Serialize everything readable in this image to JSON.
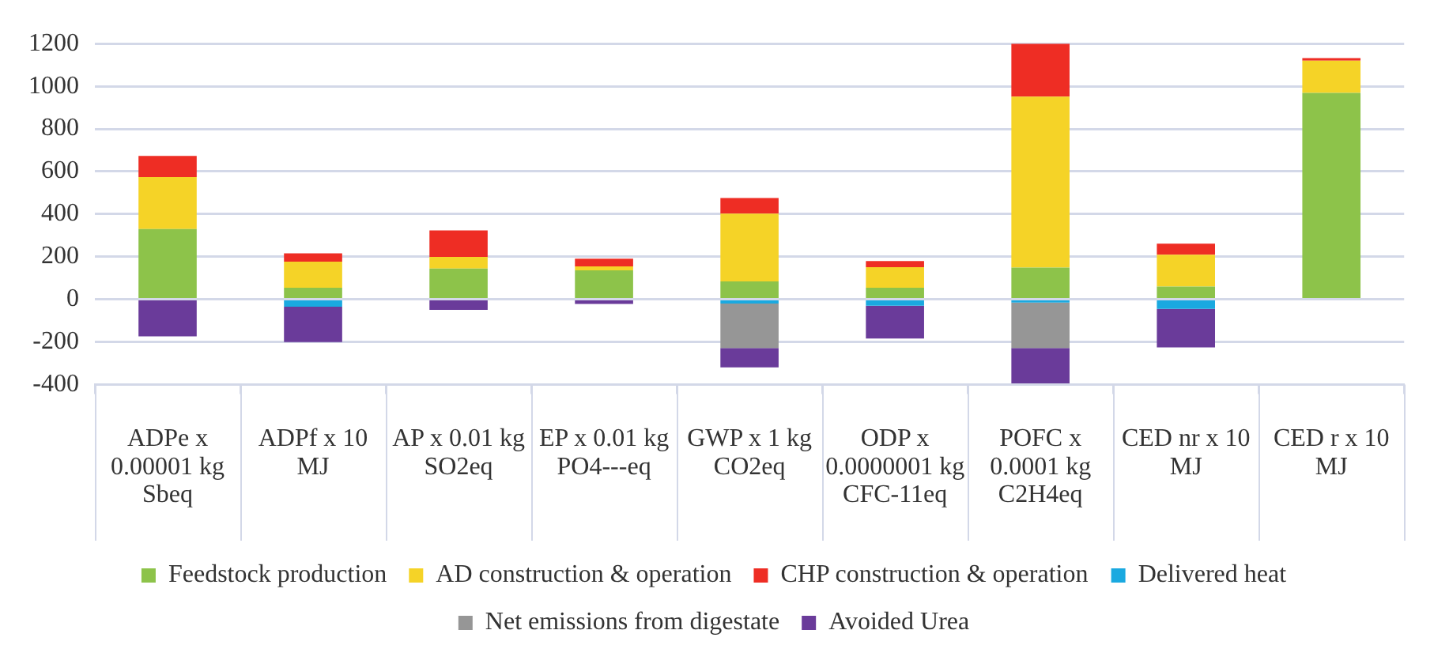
{
  "chart_data": {
    "type": "bar",
    "stacked": true,
    "categories": [
      "ADPe x 0.00001 kg Sbeq",
      "ADPf x 10 MJ",
      "AP x 0.01 kg SO2eq",
      "EP x 0.01 kg PO4---eq",
      "GWP x 1 kg CO2eq",
      "ODP x 0.0000001 kg CFC-11eq",
      "POFC x 0.0001 kg C2H4eq",
      "CED nr x 10 MJ",
      "CED r x 10 MJ"
    ],
    "series": [
      {
        "name": "Feedstock production",
        "color": "#8dc34a",
        "values": [
          330,
          54,
          144,
          136,
          84,
          54,
          149,
          60,
          969
        ]
      },
      {
        "name": "AD construction & operation",
        "color": "#f5d327",
        "values": [
          244,
          123,
          55,
          18,
          318,
          97,
          802,
          149,
          151
        ]
      },
      {
        "name": "CHP construction & operation",
        "color": "#ee2d24",
        "values": [
          99,
          39,
          124,
          37,
          73,
          28,
          249,
          52,
          12
        ]
      },
      {
        "name": "Delivered heat",
        "color": "#1aa9e0",
        "values": [
          null,
          -35,
          null,
          null,
          -20,
          -30,
          -15,
          -45,
          null
        ]
      },
      {
        "name": "Net emissions from digestate",
        "color": "#969696",
        "values": [
          null,
          null,
          null,
          null,
          -209,
          null,
          -214,
          null,
          null
        ]
      },
      {
        "name": "Avoided Urea",
        "color": "#6a3b9a",
        "values": [
          -174,
          -166,
          -50,
          -22,
          -91,
          -154,
          -166,
          -181,
          null
        ]
      }
    ],
    "ylim": [
      -400,
      1200
    ],
    "yticks": [
      -400,
      -200,
      0,
      200,
      400,
      600,
      800,
      1000,
      1200
    ],
    "grid": "y",
    "legend": "bottom"
  }
}
